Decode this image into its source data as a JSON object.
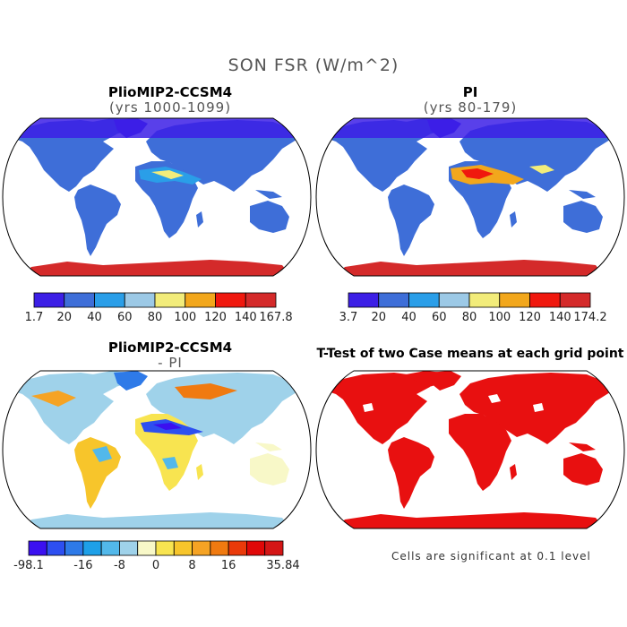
{
  "title": "SON FSR (W/m^2)",
  "panels": [
    {
      "id": "plio",
      "title": "PlioMIP2-CCSM4",
      "subtitle": "(yrs 1000-1099)"
    },
    {
      "id": "pi",
      "title": "PI",
      "subtitle": "(yrs 80-179)"
    },
    {
      "id": "diff",
      "title": "PlioMIP2-CCSM4",
      "subtitle": "- PI"
    },
    {
      "id": "ttest",
      "title": "T-Test of two Case means at each grid point",
      "subtitle": ""
    }
  ],
  "colorbars": {
    "plio": {
      "labels": [
        "1.7",
        "20",
        "40",
        "60",
        "80",
        "100",
        "120",
        "140",
        "167.8"
      ],
      "colors": [
        "#3c1fe6",
        "#3e6ed8",
        "#2a9ee8",
        "#9cc9e6",
        "#f2ec7a",
        "#f2a71c",
        "#f0180e",
        "#d42a2a"
      ]
    },
    "pi": {
      "labels": [
        "3.7",
        "20",
        "40",
        "60",
        "80",
        "100",
        "120",
        "140",
        "174.2"
      ],
      "colors": [
        "#3c1fe6",
        "#3e6ed8",
        "#2a9ee8",
        "#9cc9e6",
        "#f2ec7a",
        "#f2a71c",
        "#f0180e",
        "#d42a2a"
      ]
    },
    "diff": {
      "labels": [
        "-98.1",
        "-16",
        "-8",
        "0",
        "8",
        "16",
        "35.84"
      ],
      "label_positions": [
        0,
        3,
        5,
        7,
        9,
        11,
        14
      ],
      "colors": [
        "#3b10f0",
        "#2d4ff0",
        "#2e7ae8",
        "#1ea0e8",
        "#52b8ea",
        "#9fd2ea",
        "#f8f8c8",
        "#f8e450",
        "#f7c52b",
        "#f5a324",
        "#f07a10",
        "#ea3a0a",
        "#e00808",
        "#d41616"
      ]
    }
  },
  "footnote": "Cells are significant at 0.1 level",
  "map_colors": {
    "ocean": "#ffffff",
    "significant": "#e81010"
  }
}
